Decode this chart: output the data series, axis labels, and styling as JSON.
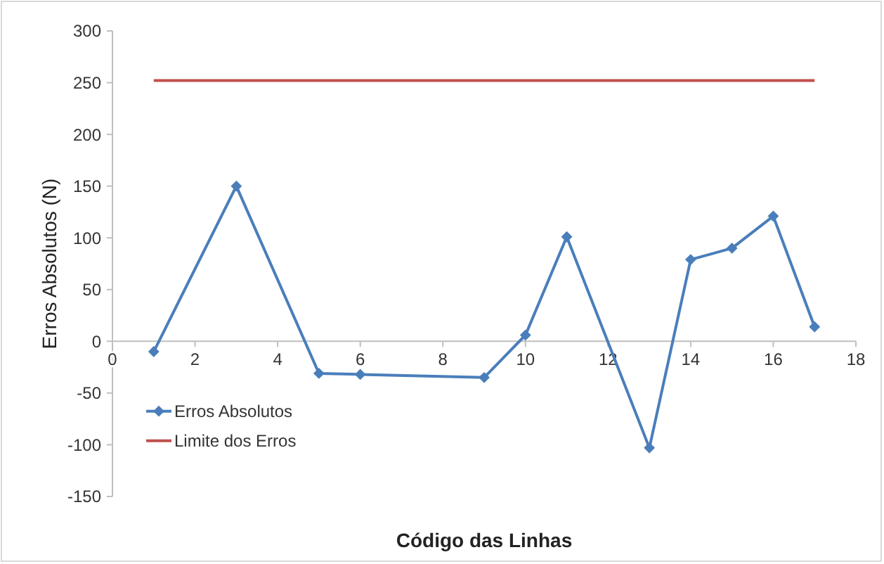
{
  "chart_data": {
    "type": "line",
    "xlabel": "Código das Linhas",
    "ylabel": "Erros Absolutos (N)",
    "xlim": [
      0,
      18
    ],
    "xticks": [
      0,
      2,
      4,
      6,
      8,
      10,
      12,
      14,
      16,
      18
    ],
    "ylim": [
      -150,
      300
    ],
    "yticks": [
      -150,
      -100,
      -50,
      0,
      50,
      100,
      150,
      200,
      250,
      300
    ],
    "grid": false,
    "legend": "bottom left",
    "series": [
      {
        "name": "Erros Absolutos",
        "color": "#4a7ebb",
        "marker": "diamond",
        "x": [
          1,
          3,
          5,
          6,
          9,
          10,
          11,
          13,
          14,
          15,
          16,
          17
        ],
        "values": [
          -10,
          150,
          -31,
          -32,
          -35,
          6,
          101,
          -103,
          79,
          90,
          121,
          14
        ]
      },
      {
        "name": "Limite dos Erros",
        "color": "#c0504d",
        "marker": "none",
        "x": [
          1,
          17
        ],
        "values": [
          252,
          252
        ]
      }
    ]
  }
}
